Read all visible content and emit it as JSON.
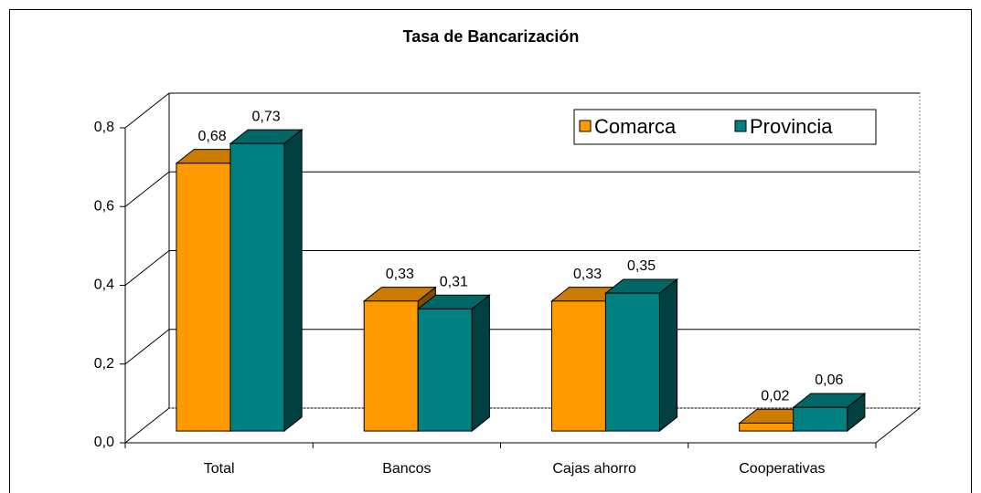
{
  "chart_data": {
    "type": "bar3d",
    "title": "Tasa de Bancarización",
    "categories": [
      "Total",
      "Bancos",
      "Cajas ahorro",
      "Cooperativas"
    ],
    "series": [
      {
        "name": "Comarca",
        "color": "#ff9900",
        "values": [
          0.68,
          0.33,
          0.33,
          0.02
        ],
        "value_labels": [
          "0,68",
          "0,33",
          "0,33",
          "0,02"
        ]
      },
      {
        "name": "Provincia",
        "color": "#008080",
        "values": [
          0.73,
          0.31,
          0.35,
          0.06
        ],
        "value_labels": [
          "0,73",
          "0,31",
          "0,35",
          "0,06"
        ]
      }
    ],
    "ylim": [
      0,
      0.8
    ],
    "yticks": [
      {
        "value": 0,
        "label": "0,0"
      },
      {
        "value": 0.2,
        "label": "0,2"
      },
      {
        "value": 0.4,
        "label": "0,4"
      },
      {
        "value": 0.6,
        "label": "0,6"
      },
      {
        "value": 0.8,
        "label": "0,8"
      }
    ],
    "grid": true,
    "legend": "top-right"
  }
}
